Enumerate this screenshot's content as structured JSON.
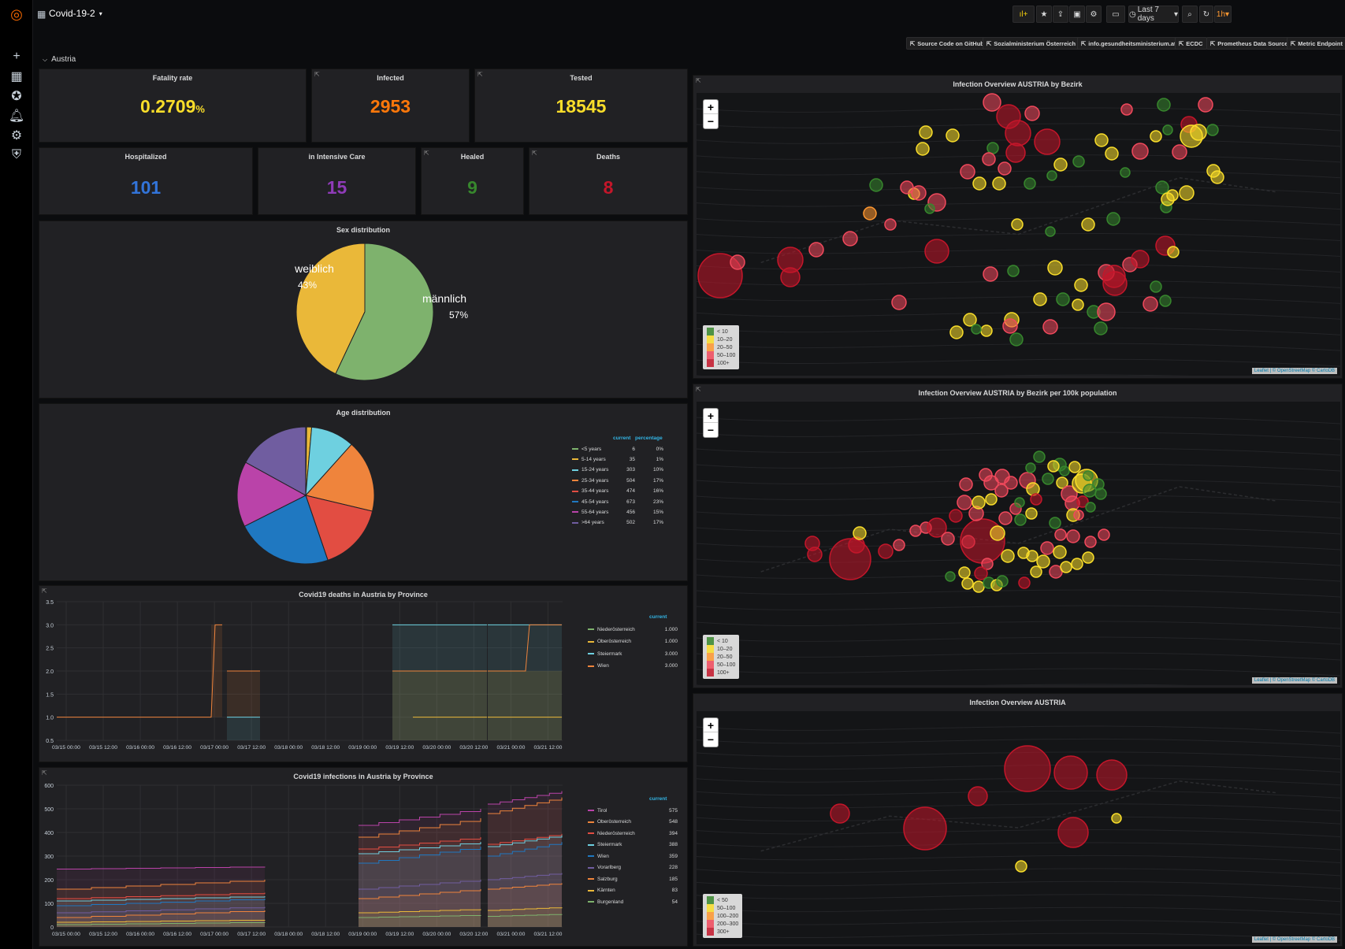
{
  "app": {
    "title": "Covid-19-2",
    "section": "Austria",
    "time_range": "Last 7 days",
    "refresh": "1h"
  },
  "links": [
    "Source Code on GitHub",
    "Sozialministerium Österreich",
    "info.gesundheitsministerium.at",
    "ECDC",
    "Prometheus Data Source",
    "Metric Endpoint"
  ],
  "stats": {
    "fatality": {
      "title": "Fatality rate",
      "value": "0.2709",
      "unit": "%",
      "color": "#fade2a"
    },
    "infected": {
      "title": "Infected",
      "value": "2953",
      "color": "#ff780a"
    },
    "tested": {
      "title": "Tested",
      "value": "18545",
      "color": "#fade2a"
    },
    "hospitalized": {
      "title": "Hospitalized",
      "value": "101",
      "color": "#3274d9"
    },
    "icu": {
      "title": "in Intensive Care",
      "value": "15",
      "color": "#8f3bb8"
    },
    "healed": {
      "title": "Healed",
      "value": "9",
      "color": "#37872d"
    },
    "deaths": {
      "title": "Deaths",
      "value": "8",
      "color": "#c4162a"
    }
  },
  "sex_panel": {
    "title": "Sex distribution"
  },
  "age_panel": {
    "title": "Age distribution"
  },
  "deaths_panel": {
    "title": "Covid19 deaths in Austria by Province"
  },
  "infections_panel": {
    "title": "Covid19 infections in Austria by Province"
  },
  "maps": {
    "bezirk": {
      "title": "Infection Overview AUSTRIA by Bezirk",
      "legend": [
        "< 10",
        "10–20",
        "20–50",
        "50–100",
        "100+"
      ]
    },
    "per100k": {
      "title": "Infection Overview AUSTRIA by Bezirk per 100k population",
      "legend": [
        "< 10",
        "10–20",
        "20–50",
        "50–100",
        "100+"
      ]
    },
    "austria": {
      "title": "Infection Overview AUSTRIA",
      "legend": [
        "< 50",
        "50–100",
        "100–200",
        "200–300",
        "300+"
      ]
    },
    "legend_colors": [
      "#37872d",
      "#fade2a",
      "#ff9830",
      "#f2495c",
      "#c4162a"
    ],
    "attribution": "Leaflet | © OpenStreetMap © CartoDB"
  },
  "chart_data": [
    {
      "type": "pie",
      "title": "Sex distribution",
      "labels": [
        "weiblich",
        "männlich"
      ],
      "values": [
        43,
        57
      ],
      "display": [
        "43%",
        "57%"
      ],
      "colors": [
        "#eab839",
        "#7eb26d"
      ]
    },
    {
      "type": "pie",
      "title": "Age distribution",
      "legend_headers": [
        "current",
        "percentage"
      ],
      "labels": [
        "<5 years",
        "5-14 years",
        "15-24 years",
        "25-34 years",
        "35-44 years",
        "45-54 years",
        "55-64 years",
        ">64 years"
      ],
      "values": [
        6,
        35,
        303,
        504,
        474,
        673,
        456,
        502
      ],
      "percent": [
        "0%",
        "1%",
        "10%",
        "17%",
        "16%",
        "23%",
        "15%",
        "17%"
      ],
      "colors": [
        "#7eb26d",
        "#eab839",
        "#6ed0e0",
        "#ef843c",
        "#e24d42",
        "#1f78c1",
        "#ba43a9",
        "#705da0"
      ]
    },
    {
      "type": "line",
      "title": "Covid19 deaths in Austria by Province",
      "x": [
        "03/15 00:00",
        "03/15 12:00",
        "03/16 00:00",
        "03/16 12:00",
        "03/17 00:00",
        "03/17 12:00",
        "03/18 00:00",
        "03/18 12:00",
        "03/19 00:00",
        "03/19 12:00",
        "03/20 00:00",
        "03/20 12:00",
        "03/21 00:00",
        "03/21 12:00"
      ],
      "ylim": [
        0.5,
        3.5
      ],
      "yticks": [
        "0.5",
        "1.0",
        "1.5",
        "2.0",
        "2.5",
        "3.0",
        "3.5"
      ],
      "legend_header": "current",
      "series": [
        {
          "name": "Niederösterreich",
          "current": "1.000",
          "color": "#7eb26d"
        },
        {
          "name": "Oberösterreich",
          "current": "1.000",
          "color": "#eab839"
        },
        {
          "name": "Steiermark",
          "current": "3.000",
          "color": "#6ed0e0"
        },
        {
          "name": "Wien",
          "current": "3.000",
          "color": "#ef843c"
        }
      ]
    },
    {
      "type": "area",
      "title": "Covid19 infections in Austria by Province",
      "x": [
        "03/15 00:00",
        "03/15 12:00",
        "03/16 00:00",
        "03/16 12:00",
        "03/17 00:00",
        "03/17 12:00",
        "03/18 00:00",
        "03/18 12:00",
        "03/19 00:00",
        "03/19 12:00",
        "03/20 00:00",
        "03/20 12:00",
        "03/21 00:00",
        "03/21 12:00"
      ],
      "ylim": [
        0,
        600
      ],
      "yticks": [
        "0",
        "100",
        "200",
        "300",
        "400",
        "500",
        "600"
      ],
      "legend_header": "current",
      "series": [
        {
          "name": "Tirol",
          "current": "575",
          "color": "#ba43a9"
        },
        {
          "name": "Oberösterreich",
          "current": "548",
          "color": "#ef843c"
        },
        {
          "name": "Niederösterreich",
          "current": "394",
          "color": "#e24d42"
        },
        {
          "name": "Steiermark",
          "current": "388",
          "color": "#6ed0e0"
        },
        {
          "name": "Wien",
          "current": "359",
          "color": "#1f78c1"
        },
        {
          "name": "Vorarlberg",
          "current": "228",
          "color": "#705da0"
        },
        {
          "name": "Salzburg",
          "current": "185",
          "color": "#ef843c"
        },
        {
          "name": "Kärnten",
          "current": "83",
          "color": "#eab839"
        },
        {
          "name": "Burgenland",
          "current": "54",
          "color": "#7eb26d"
        }
      ]
    }
  ]
}
